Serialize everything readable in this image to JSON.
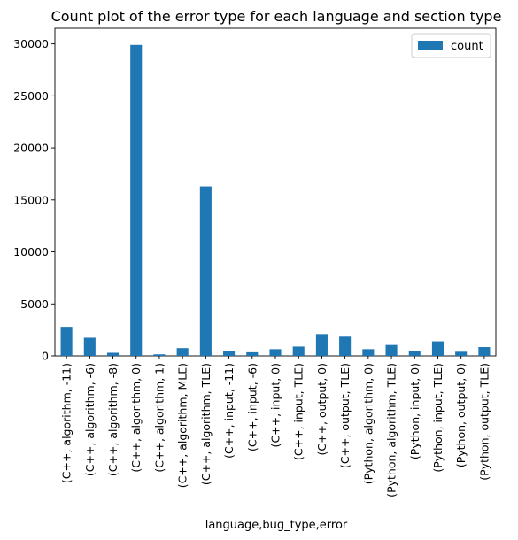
{
  "chart_data": {
    "type": "bar",
    "title": "Count plot of the error type for each language and section type",
    "xlabel": "language,bug_type,error",
    "ylabel": "",
    "ylim": [
      0,
      31500
    ],
    "yticks": [
      0,
      5000,
      10000,
      15000,
      20000,
      25000,
      30000
    ],
    "legend": {
      "placement": "top-right",
      "entries": [
        "count"
      ]
    },
    "grid": false,
    "categories": [
      "(C++, algorithm, -11)",
      "(C++, algorithm, -6)",
      "(C++, algorithm, -8)",
      "(C++, algorithm, 0)",
      "(C++, algorithm, 1)",
      "(C++, algorithm, MLE)",
      "(C++, algorithm, TLE)",
      "(C++, input, -11)",
      "(C++, input, -6)",
      "(C++, input, 0)",
      "(C++, input, TLE)",
      "(C++, output, 0)",
      "(C++, output, TLE)",
      "(Python, algorithm, 0)",
      "(Python, algorithm, TLE)",
      "(Python, input, 0)",
      "(Python, input, TLE)",
      "(Python, output, 0)",
      "(Python, output, TLE)"
    ],
    "series": [
      {
        "name": "count",
        "color": "#1f77b4",
        "values": [
          2800,
          1750,
          300,
          29900,
          150,
          750,
          16300,
          450,
          350,
          650,
          900,
          2100,
          1850,
          650,
          1050,
          450,
          1400,
          400,
          850
        ]
      }
    ]
  }
}
